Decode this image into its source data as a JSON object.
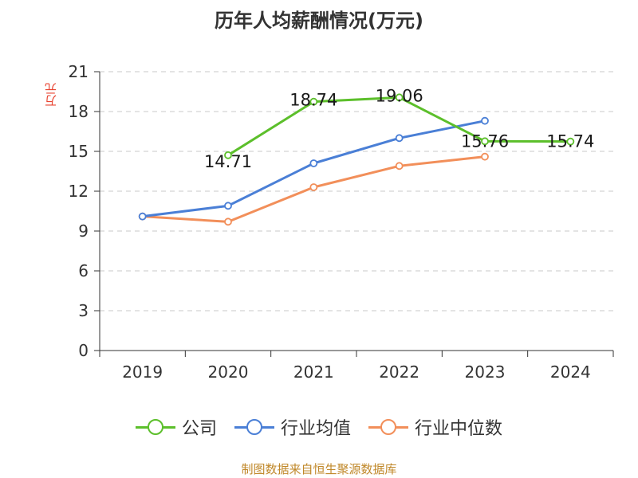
{
  "title": "历年人均薪酬情况(万元)",
  "source": "制图数据来自恒生聚源数据库",
  "chart_data": {
    "type": "line",
    "title": "历年人均薪酬情况(万元)",
    "ylabel": "万元",
    "xlabel": "",
    "categories": [
      "2019",
      "2020",
      "2021",
      "2022",
      "2023",
      "2024"
    ],
    "yticks": [
      "0",
      "3",
      "6",
      "9",
      "12",
      "15",
      "18",
      "21"
    ],
    "ylim": [
      0,
      21
    ],
    "grid": true,
    "legend_position": "bottom",
    "series": [
      {
        "name": "公司",
        "color": "#5cbf2b",
        "values": [
          null,
          14.71,
          18.74,
          19.06,
          15.76,
          15.74
        ],
        "labels": [
          "",
          "14.71",
          "18.74",
          "19.06",
          "15.76",
          "15.74"
        ]
      },
      {
        "name": "行业均值",
        "color": "#4a7fd6",
        "values": [
          10.1,
          10.9,
          14.1,
          16.0,
          17.3,
          null
        ]
      },
      {
        "name": "行业中位数",
        "color": "#f28f5a",
        "values": [
          10.1,
          9.7,
          12.3,
          13.9,
          14.6,
          null
        ]
      }
    ]
  }
}
